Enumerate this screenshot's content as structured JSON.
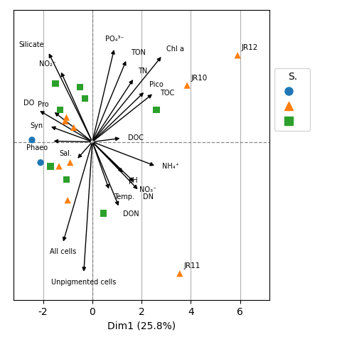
{
  "chart_data": {
    "type": "biplot",
    "xlabel": "Dim1 (25.8%)",
    "xlim": [
      -3.2,
      7.2
    ],
    "xticks": [
      -2,
      0,
      2,
      4,
      6
    ],
    "ylim": [
      -4.2,
      3.5
    ],
    "yticks": [],
    "tick_labels": "x",
    "grid": true,
    "legend": "upper left",
    "legend_title": "S.",
    "hlines": {
      "values": [
        0
      ],
      "color": "#888888",
      "line_style": "dashed"
    },
    "vlines": {
      "values": [
        0
      ],
      "color": "#888888",
      "line_style": "dashed"
    },
    "arrows": {
      "color": "#000000",
      "origin": [
        0,
        0
      ],
      "labels": [
        "Silicate",
        "NO₂⁻",
        "DO",
        "Pro",
        "Syn",
        "Phaeo",
        "Sal.",
        "PO₄³⁻",
        "TON",
        "TN",
        "Pico",
        "TOC",
        "Chl a",
        "DOC",
        "Temp.",
        "pH",
        "NO₃⁻",
        "DN",
        "DON",
        "NH₄⁺",
        "All cells",
        "Unpigmented cells"
      ],
      "x": [
        -1.8,
        -1.3,
        -2.2,
        -1.6,
        -1.75,
        -1.65,
        -0.65,
        0.9,
        1.4,
        1.7,
        2.15,
        2.5,
        2.85,
        1.2,
        0.7,
        1.3,
        1.75,
        1.9,
        1.1,
        2.6,
        -1.2,
        -0.35
      ],
      "y": [
        2.4,
        1.9,
        0.85,
        0.82,
        0.42,
        0.02,
        -0.48,
        2.5,
        2.2,
        1.7,
        1.35,
        1.3,
        2.3,
        0.1,
        -1.3,
        -0.85,
        -1.1,
        -1.3,
        -1.75,
        -0.65,
        -2.7,
        -3.5
      ]
    },
    "series": [
      {
        "marker": "circle",
        "x": [
          -2.45,
          -2.1
        ],
        "y": [
          0.05,
          -0.55
        ]
      },
      {
        "marker": "triangle",
        "x": [
          -1.05,
          -1.1,
          -0.75,
          -0.9,
          -1.35,
          -1.0,
          3.85,
          5.9,
          3.55
        ],
        "y": [
          0.65,
          0.55,
          0.38,
          -0.55,
          -0.65,
          -1.55,
          1.5,
          2.3,
          -3.5
        ],
        "point_labels": [
          null,
          null,
          null,
          null,
          null,
          null,
          "JR10",
          "JR12",
          "JR11"
        ]
      },
      {
        "marker": "square",
        "x": [
          -1.5,
          -0.5,
          -1.3,
          -1.7,
          -1.05,
          0.45,
          2.6,
          -0.3
        ],
        "y": [
          1.55,
          1.45,
          0.85,
          -0.65,
          -1.0,
          -1.9,
          0.85,
          1.15
        ]
      }
    ]
  }
}
